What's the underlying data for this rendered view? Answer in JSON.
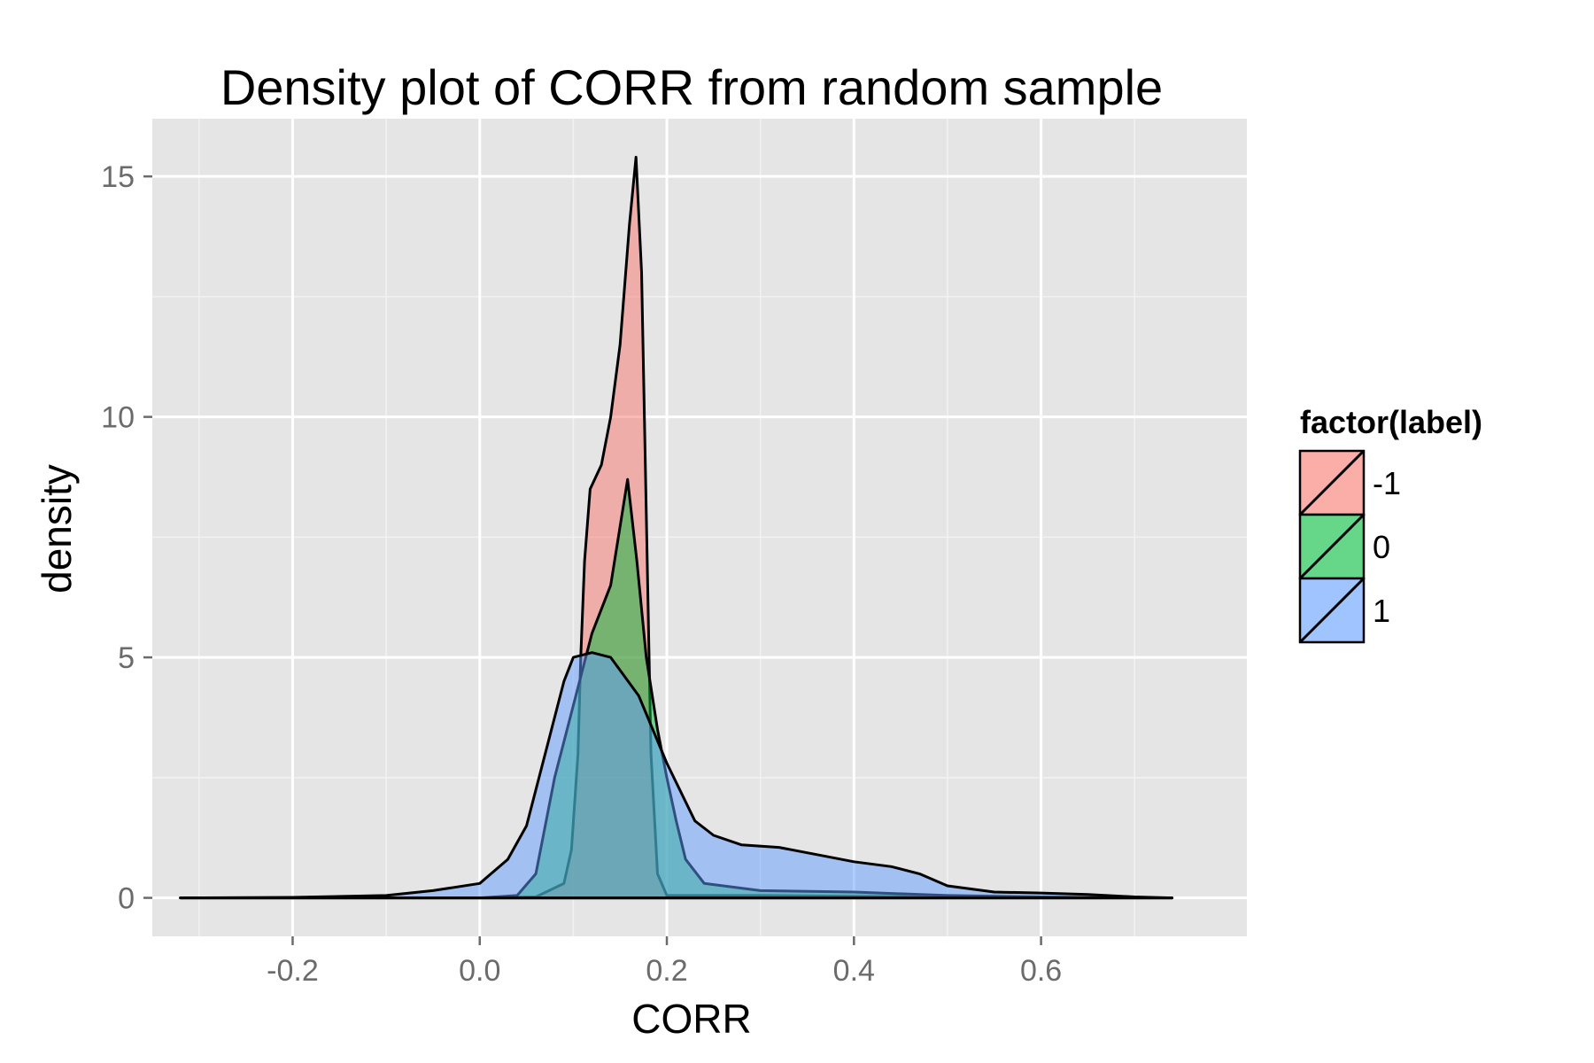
{
  "chart_data": {
    "type": "area",
    "title": "Density plot of CORR from random sample",
    "xlabel": "CORR",
    "ylabel": "density",
    "xlim": [
      -0.35,
      0.82
    ],
    "ylim": [
      -0.8,
      16.2
    ],
    "x_ticks": [
      -0.2,
      0.0,
      0.2,
      0.4,
      0.6
    ],
    "x_tick_labels": [
      "-0.2",
      "0.0",
      "0.2",
      "0.4",
      "0.6"
    ],
    "y_ticks": [
      0,
      5,
      10,
      15
    ],
    "y_tick_labels": [
      "0",
      "5",
      "10",
      "15"
    ],
    "grid": true,
    "legend": {
      "title": "factor(label)",
      "position": "right"
    },
    "series": [
      {
        "name": "-1",
        "color": "#f8766d",
        "points": [
          [
            -0.32,
            0
          ],
          [
            0,
            0
          ],
          [
            0.06,
            0.02
          ],
          [
            0.09,
            0.3
          ],
          [
            0.098,
            1
          ],
          [
            0.105,
            3
          ],
          [
            0.108,
            5
          ],
          [
            0.112,
            7
          ],
          [
            0.118,
            8.5
          ],
          [
            0.13,
            9
          ],
          [
            0.14,
            10
          ],
          [
            0.15,
            11.5
          ],
          [
            0.16,
            14
          ],
          [
            0.167,
            15.4
          ],
          [
            0.173,
            13
          ],
          [
            0.178,
            8
          ],
          [
            0.183,
            3
          ],
          [
            0.19,
            0.5
          ],
          [
            0.2,
            0.05
          ],
          [
            0.3,
            0.05
          ],
          [
            0.5,
            0.02
          ],
          [
            0.74,
            0
          ]
        ]
      },
      {
        "name": "0",
        "color": "#00ba38",
        "points": [
          [
            -0.32,
            0
          ],
          [
            0,
            0
          ],
          [
            0.04,
            0.05
          ],
          [
            0.06,
            0.5
          ],
          [
            0.08,
            2.5
          ],
          [
            0.1,
            4
          ],
          [
            0.12,
            5.5
          ],
          [
            0.14,
            6.5
          ],
          [
            0.158,
            8.7
          ],
          [
            0.168,
            7
          ],
          [
            0.178,
            5
          ],
          [
            0.19,
            3.5
          ],
          [
            0.2,
            2.5
          ],
          [
            0.21,
            1.6
          ],
          [
            0.22,
            0.8
          ],
          [
            0.24,
            0.3
          ],
          [
            0.3,
            0.15
          ],
          [
            0.4,
            0.12
          ],
          [
            0.5,
            0.05
          ],
          [
            0.6,
            0.02
          ],
          [
            0.74,
            0
          ]
        ]
      },
      {
        "name": "1",
        "color": "#619cff",
        "points": [
          [
            -0.32,
            0
          ],
          [
            -0.2,
            0.01
          ],
          [
            -0.1,
            0.05
          ],
          [
            -0.05,
            0.15
          ],
          [
            0,
            0.3
          ],
          [
            0.03,
            0.8
          ],
          [
            0.05,
            1.5
          ],
          [
            0.07,
            3
          ],
          [
            0.09,
            4.5
          ],
          [
            0.1,
            5
          ],
          [
            0.12,
            5.1
          ],
          [
            0.14,
            5
          ],
          [
            0.17,
            4.2
          ],
          [
            0.2,
            2.8
          ],
          [
            0.23,
            1.6
          ],
          [
            0.25,
            1.3
          ],
          [
            0.28,
            1.1
          ],
          [
            0.32,
            1.05
          ],
          [
            0.36,
            0.9
          ],
          [
            0.4,
            0.75
          ],
          [
            0.44,
            0.65
          ],
          [
            0.47,
            0.5
          ],
          [
            0.5,
            0.25
          ],
          [
            0.55,
            0.12
          ],
          [
            0.6,
            0.1
          ],
          [
            0.65,
            0.07
          ],
          [
            0.7,
            0.02
          ],
          [
            0.74,
            0
          ]
        ]
      }
    ]
  }
}
